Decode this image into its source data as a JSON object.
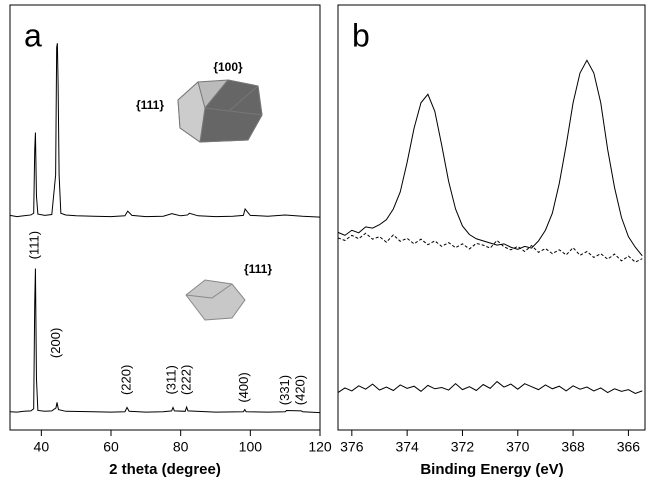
{
  "chart_data": [
    {
      "type": "line",
      "panel_label": "a",
      "x_label": "2 theta (degree)",
      "xlim": [
        31,
        120
      ],
      "xticks": [
        40,
        60,
        80,
        100,
        120
      ],
      "ylim": [
        0,
        100
      ],
      "inset_labels": [
        "{100}",
        "{111}",
        "{111}"
      ],
      "annotations": [
        {
          "text": "(111)",
          "x": 38.2,
          "y": 43.5
        },
        {
          "text": "(200)",
          "x": 44.4,
          "y": 20.5
        },
        {
          "text": "(220)",
          "x": 64.6,
          "y": 11.8
        },
        {
          "text": "(311)",
          "x": 77.6,
          "y": 11.8
        },
        {
          "text": "(222)",
          "x": 81.9,
          "y": 11.8
        },
        {
          "text": "(400)",
          "x": 98.4,
          "y": 10
        },
        {
          "text": "(331)",
          "x": 110.1,
          "y": 9.4
        },
        {
          "text": "(420)",
          "x": 114.5,
          "y": 9.4
        }
      ],
      "series": [
        {
          "color": "#000000",
          "dash": false,
          "x": [
            31,
            33,
            35,
            37,
            37.8,
            38.1,
            38.3,
            38.6,
            39,
            41,
            43,
            44.1,
            44.4,
            44.6,
            44.8,
            45.1,
            45.6,
            47,
            50,
            55,
            60,
            64,
            64.8,
            66,
            70,
            75,
            77.5,
            78,
            80,
            82,
            82.5,
            85,
            90,
            95,
            98,
            98.5,
            99,
            100,
            105,
            110,
            115,
            120
          ],
          "values": [
            50.5,
            50.2,
            50.4,
            50.6,
            51,
            66,
            70,
            55,
            50.8,
            50.5,
            50.7,
            60,
            90,
            91,
            82,
            60,
            51,
            50.6,
            50.4,
            50.3,
            50.2,
            50.4,
            51.5,
            50.5,
            50.2,
            50.3,
            50.9,
            50.8,
            50.4,
            50.6,
            51,
            50.4,
            50.2,
            50.3,
            50.5,
            52,
            51.5,
            50.5,
            50.3,
            50.6,
            50.3,
            50.1
          ]
        },
        {
          "color": "#000000",
          "dash": false,
          "x": [
            31,
            33,
            35,
            37,
            37.8,
            38.1,
            38.3,
            38.6,
            39,
            41,
            43,
            44.2,
            44.5,
            44.9,
            47,
            55,
            60,
            64,
            64.6,
            65.2,
            70,
            75,
            77.4,
            77.8,
            78.2,
            81.3,
            81.7,
            82.1,
            90,
            98,
            98.4,
            98.8,
            105,
            110,
            110.4,
            114.6,
            115,
            120
          ],
          "values": [
            4.3,
            4.2,
            4.4,
            4.5,
            5,
            30,
            38,
            12,
            4.6,
            4.4,
            4.5,
            5.2,
            6.5,
            4.8,
            4.4,
            4.3,
            4.2,
            4.3,
            5.3,
            4.4,
            4.2,
            4.3,
            4.5,
            5.3,
            4.5,
            4.4,
            5.4,
            4.5,
            4.2,
            4.3,
            4.8,
            4.3,
            4.2,
            4.3,
            4.6,
            4.5,
            4.3,
            4.1
          ]
        }
      ]
    },
    {
      "type": "line",
      "panel_label": "b",
      "x_label": "Binding Energy (eV)",
      "xlim": [
        376.5,
        365.4
      ],
      "xticks": [
        376,
        374,
        372,
        370,
        368,
        366
      ],
      "ylim": [
        0,
        100
      ],
      "series": [
        {
          "color": "#000000",
          "dash": false,
          "x": [
            376.5,
            376.25,
            376,
            375.75,
            375.5,
            375.25,
            375,
            374.75,
            374.5,
            374.25,
            374,
            373.75,
            373.5,
            373.25,
            373,
            372.75,
            372.5,
            372.25,
            372,
            371.75,
            371.5,
            371.25,
            371,
            370.75,
            370.5,
            370.25,
            370,
            369.75,
            369.5,
            369.25,
            369,
            368.75,
            368.5,
            368.25,
            368,
            367.75,
            367.5,
            367.25,
            367,
            366.75,
            366.5,
            366.25,
            366,
            365.75,
            365.5
          ],
          "values": [
            46.5,
            45.8,
            47,
            46.4,
            47.8,
            47.5,
            48.3,
            49.5,
            52,
            56,
            63,
            71,
            77,
            79,
            75,
            67,
            58.5,
            52,
            48,
            46,
            45,
            44.5,
            44,
            43.5,
            43.8,
            43,
            42.5,
            43.2,
            42.8,
            44.5,
            47,
            51,
            58,
            67,
            77,
            84,
            87,
            84,
            77,
            66,
            57,
            50,
            45.5,
            43,
            41
          ]
        },
        {
          "color": "#000000",
          "dash": true,
          "x": [
            376.5,
            376.25,
            376,
            375.75,
            375.5,
            375.25,
            375,
            374.75,
            374.5,
            374.25,
            374,
            373.75,
            373.5,
            373.25,
            373,
            372.75,
            372.5,
            372.25,
            372,
            371.75,
            371.5,
            371.25,
            371,
            370.75,
            370.5,
            370.25,
            370,
            369.75,
            369.5,
            369.25,
            369,
            368.75,
            368.5,
            368.25,
            368,
            367.75,
            367.5,
            367.25,
            367,
            366.75,
            366.5,
            366.25,
            366,
            365.75,
            365.5
          ],
          "values": [
            45.2,
            44.6,
            45.8,
            45,
            46.3,
            44.9,
            45.5,
            44.2,
            45.9,
            44.4,
            45.1,
            43.8,
            44.9,
            43.6,
            44.5,
            43.2,
            44.1,
            42.9,
            43.8,
            42.6,
            43.9,
            43.5,
            42.8,
            44.6,
            43.1,
            42.4,
            43.2,
            42,
            43.4,
            41.8,
            42.7,
            41.5,
            42.4,
            41.2,
            42.9,
            41.1,
            42,
            40.6,
            41.5,
            40.2,
            41.4,
            39.8,
            40.9,
            39.5,
            40.3
          ]
        },
        {
          "color": "#000000",
          "dash": false,
          "x": [
            376.5,
            376.25,
            376,
            375.75,
            375.5,
            375.25,
            375,
            374.75,
            374.5,
            374.25,
            374,
            373.75,
            373.5,
            373.25,
            373,
            372.75,
            372.5,
            372.25,
            372,
            371.75,
            371.5,
            371.25,
            371,
            370.75,
            370.5,
            370.25,
            370,
            369.75,
            369.5,
            369.25,
            369,
            368.75,
            368.5,
            368.25,
            368,
            367.75,
            367.5,
            367.25,
            367,
            366.75,
            366.5,
            366.25,
            366,
            365.75,
            365.5
          ],
          "values": [
            8.8,
            9.9,
            9.2,
            10.4,
            9.6,
            10.8,
            9.4,
            10.1,
            9.3,
            10.6,
            9.8,
            10.3,
            9.1,
            10.5,
            9.7,
            10,
            9.4,
            10.9,
            9.5,
            10.2,
            9.3,
            10.7,
            9.8,
            11.4,
            10.1,
            10.8,
            9.6,
            10.9,
            10.2,
            9.5,
            10.6,
            9.7,
            10.3,
            9.2,
            10.4,
            9.6,
            10.1,
            9.2,
            9.9,
            8.8,
            9.7,
            9.1,
            9.5,
            8.6,
            9.2
          ]
        }
      ]
    }
  ]
}
